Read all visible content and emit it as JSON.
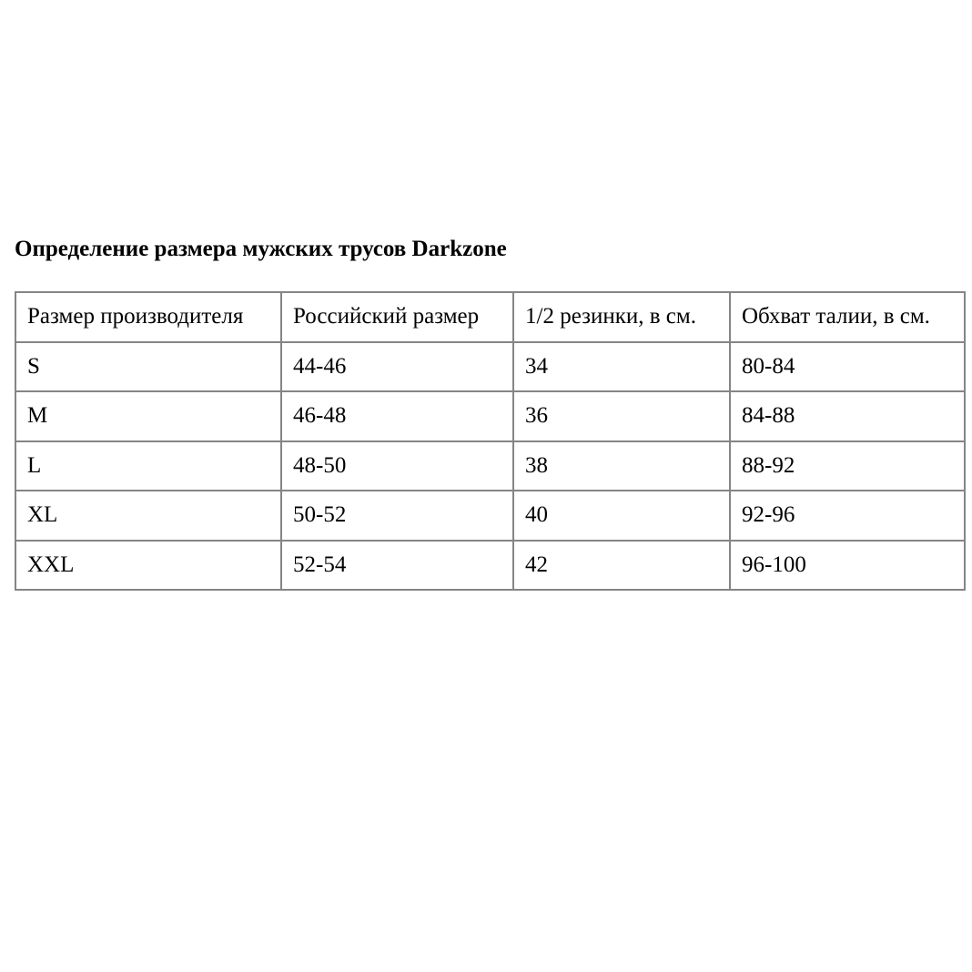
{
  "title": "Определение размера мужских трусов Darkzone",
  "table": {
    "headers": [
      "Размер производителя",
      "Российский размер",
      "1/2 резинки, в см.",
      "Обхват талии, в см."
    ],
    "rows": [
      [
        "S",
        "44-46",
        "34",
        "80-84"
      ],
      [
        "M",
        "46-48",
        "36",
        "84-88"
      ],
      [
        "L",
        "48-50",
        "38",
        "88-92"
      ],
      [
        "XL",
        "50-52",
        "40",
        "92-96"
      ],
      [
        "XXL",
        "52-54",
        "42",
        "96-100"
      ]
    ]
  },
  "colors": {
    "border": "#858585",
    "text": "#000000"
  }
}
